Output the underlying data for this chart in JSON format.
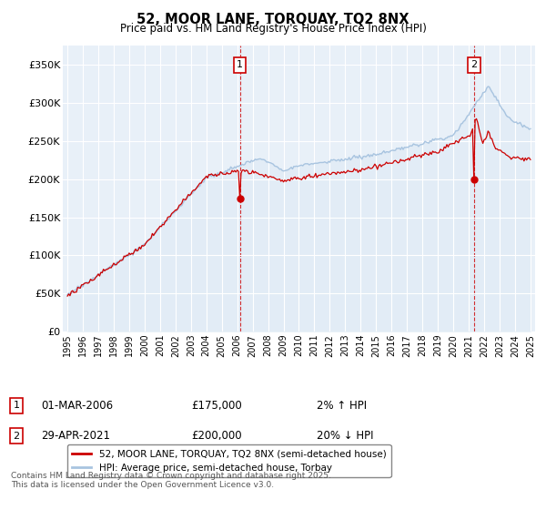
{
  "title": "52, MOOR LANE, TORQUAY, TQ2 8NX",
  "subtitle": "Price paid vs. HM Land Registry's House Price Index (HPI)",
  "legend_line1": "52, MOOR LANE, TORQUAY, TQ2 8NX (semi-detached house)",
  "legend_line2": "HPI: Average price, semi-detached house, Torbay",
  "annotation1_label": "1",
  "annotation1_date": "01-MAR-2006",
  "annotation1_price": "£175,000",
  "annotation1_hpi": "2% ↑ HPI",
  "annotation2_label": "2",
  "annotation2_date": "29-APR-2021",
  "annotation2_price": "£200,000",
  "annotation2_hpi": "20% ↓ HPI",
  "footnote": "Contains HM Land Registry data © Crown copyright and database right 2025.\nThis data is licensed under the Open Government Licence v3.0.",
  "hpi_color": "#a8c4e0",
  "hpi_fill_color": "#deeaf5",
  "price_color": "#cc0000",
  "annotation_color": "#cc0000",
  "background_color": "#ffffff",
  "plot_bg_color": "#e8f0f8",
  "grid_color": "#ffffff",
  "ylim": [
    0,
    375000
  ],
  "yticks": [
    0,
    50000,
    100000,
    150000,
    200000,
    250000,
    300000,
    350000
  ],
  "ytick_labels": [
    "£0",
    "£50K",
    "£100K",
    "£150K",
    "£200K",
    "£250K",
    "£300K",
    "£350K"
  ],
  "xlim_start": 1994.7,
  "xlim_end": 2025.3,
  "ann1_x": 2006.17,
  "ann1_y": 175000,
  "ann2_x": 2021.33,
  "ann2_y": 200000,
  "xticks": [
    1995,
    1996,
    1997,
    1998,
    1999,
    2000,
    2001,
    2002,
    2003,
    2004,
    2005,
    2006,
    2007,
    2008,
    2009,
    2010,
    2011,
    2012,
    2013,
    2014,
    2015,
    2016,
    2017,
    2018,
    2019,
    2020,
    2021,
    2022,
    2023,
    2024,
    2025
  ]
}
